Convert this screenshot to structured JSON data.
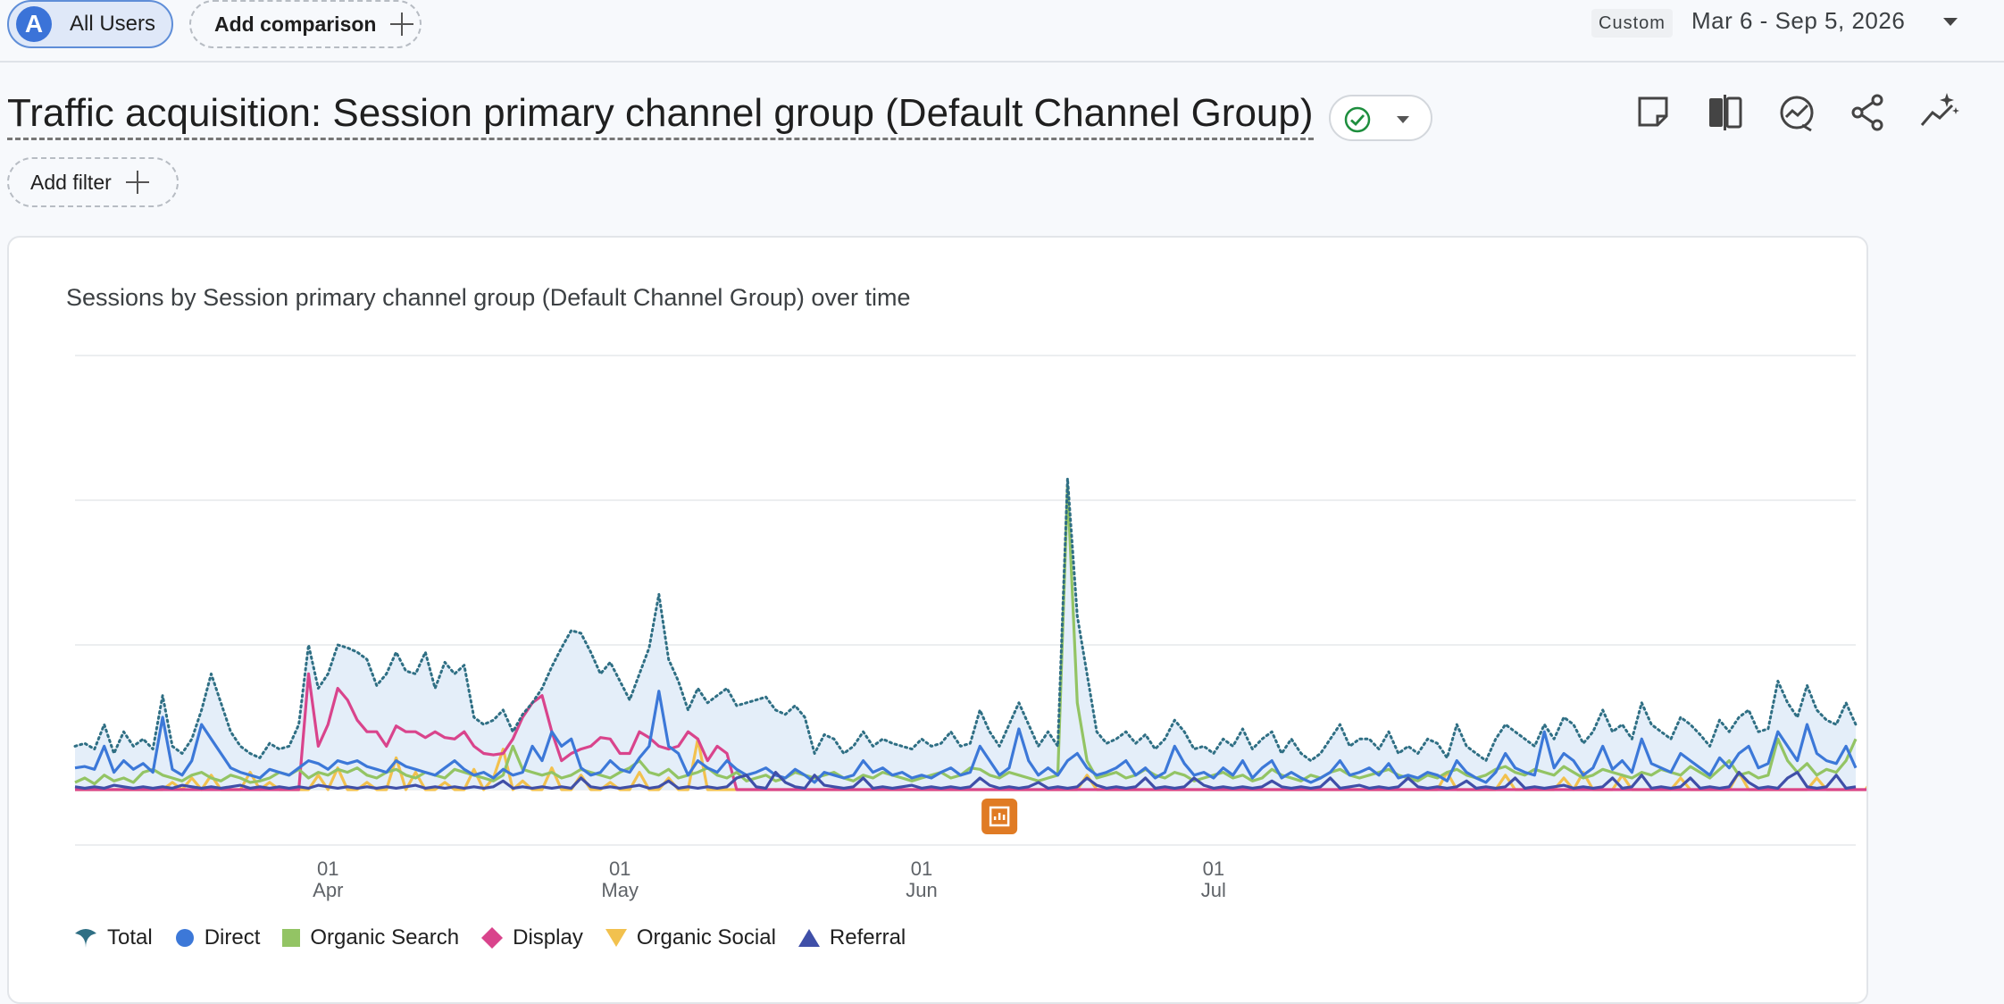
{
  "topbar": {
    "segment": {
      "initial": "A",
      "label": "All Users"
    },
    "add_comparison_label": "Add comparison",
    "date_preset": "Custom",
    "date_range": "Mar 6 - Sep 5, 2026"
  },
  "header": {
    "title": "Traffic acquisition: Session primary channel group (Default Channel Group)",
    "status_icon": "check-circle-icon",
    "tools": [
      "note-icon",
      "compare-columns-icon",
      "insights-chart-icon",
      "share-icon",
      "sparkle-trend-icon"
    ]
  },
  "filter": {
    "add_filter_label": "Add filter"
  },
  "chart_card": {
    "title": "Sessions by Session primary channel group (Default Channel Group) over time"
  },
  "colors": {
    "Total": "#2f6f84",
    "Total_fill": "#e4eef9",
    "Direct": "#3c78d8",
    "Organic Search": "#93c464",
    "Display": "#d9448c",
    "Organic Social": "#f2c14e",
    "Referral": "#3f4fa8",
    "annotation": "#e07b24"
  },
  "chart_data": {
    "type": "line",
    "x_start": "2026-03-06",
    "x_ticks": [
      {
        "date": "2026-04-01",
        "day": "01",
        "month": "Apr"
      },
      {
        "date": "2026-05-01",
        "day": "01",
        "month": "May"
      },
      {
        "date": "2026-06-01",
        "day": "01",
        "month": "Jun"
      },
      {
        "date": "2026-07-01",
        "day": "01",
        "month": "Jul"
      }
    ],
    "ylim": [
      0,
      300
    ],
    "grid": true,
    "legend_position": "bottom",
    "annotation_marker_date": "2026-06-09",
    "series": [
      {
        "name": "Total",
        "style": "dotted-area",
        "values": [
          30,
          32,
          28,
          45,
          25,
          40,
          30,
          35,
          28,
          65,
          30,
          25,
          35,
          55,
          80,
          60,
          40,
          30,
          25,
          22,
          32,
          28,
          30,
          45,
          100,
          70,
          80,
          100,
          98,
          95,
          90,
          72,
          80,
          95,
          82,
          80,
          95,
          70,
          88,
          80,
          86,
          50,
          45,
          48,
          55,
          40,
          52,
          60,
          70,
          85,
          98,
          110,
          108,
          95,
          80,
          88,
          75,
          62,
          80,
          98,
          135,
          90,
          75,
          55,
          70,
          60,
          65,
          70,
          58,
          60,
          62,
          64,
          55,
          52,
          58,
          50,
          25,
          38,
          35,
          25,
          30,
          40,
          30,
          35,
          32,
          30,
          28,
          35,
          30,
          32,
          40,
          30,
          32,
          55,
          40,
          30,
          45,
          60,
          45,
          30,
          40,
          30,
          215,
          120,
          80,
          40,
          32,
          35,
          40,
          32,
          38,
          28,
          35,
          48,
          40,
          28,
          30,
          25,
          35,
          30,
          42,
          28,
          35,
          40,
          25,
          35,
          25,
          20,
          25,
          35,
          45,
          30,
          35,
          35,
          28,
          40,
          25,
          30,
          25,
          35,
          32,
          22,
          45,
          30,
          25,
          20,
          35,
          45,
          40,
          35,
          30,
          45,
          35,
          50,
          45,
          32,
          40,
          55,
          40,
          45,
          35,
          60,
          45,
          40,
          35,
          50,
          45,
          38,
          30,
          48,
          40,
          50,
          55,
          40,
          42,
          75,
          60,
          50,
          72,
          55,
          48,
          45,
          60,
          45
        ],
        "note": ""
      },
      {
        "name": "Direct",
        "values": [
          15,
          16,
          14,
          30,
          12,
          20,
          14,
          18,
          12,
          50,
          14,
          10,
          20,
          45,
          35,
          25,
          15,
          12,
          10,
          8,
          14,
          12,
          10,
          15,
          20,
          18,
          14,
          20,
          18,
          20,
          16,
          14,
          12,
          20,
          16,
          14,
          12,
          10,
          15,
          20,
          14,
          10,
          12,
          8,
          14,
          10,
          12,
          30,
          20,
          40,
          30,
          35,
          15,
          10,
          12,
          20,
          14,
          12,
          22,
          30,
          68,
          30,
          25,
          10,
          20,
          15,
          12,
          20,
          14,
          10,
          12,
          15,
          10,
          8,
          14,
          10,
          5,
          12,
          10,
          8,
          10,
          20,
          12,
          15,
          10,
          12,
          8,
          10,
          8,
          12,
          15,
          10,
          12,
          30,
          20,
          10,
          15,
          42,
          20,
          10,
          15,
          10,
          20,
          25,
          15,
          10,
          12,
          15,
          20,
          10,
          15,
          8,
          12,
          30,
          18,
          10,
          12,
          8,
          15,
          10,
          20,
          8,
          15,
          20,
          8,
          12,
          8,
          5,
          8,
          12,
          20,
          10,
          12,
          15,
          10,
          18,
          8,
          10,
          8,
          12,
          10,
          6,
          20,
          12,
          8,
          5,
          12,
          25,
          15,
          12,
          10,
          40,
          15,
          25,
          20,
          10,
          15,
          30,
          14,
          20,
          12,
          35,
          18,
          15,
          12,
          25,
          20,
          15,
          10,
          22,
          15,
          25,
          30,
          15,
          18,
          40,
          30,
          20,
          45,
          25,
          20,
          18,
          30,
          15
        ],
        "note": ""
      },
      {
        "name": "Organic Search",
        "values": [
          5,
          8,
          4,
          10,
          6,
          8,
          5,
          12,
          14,
          10,
          8,
          6,
          10,
          12,
          8,
          6,
          10,
          8,
          5,
          6,
          8,
          12,
          10,
          14,
          8,
          12,
          10,
          14,
          12,
          15,
          10,
          8,
          12,
          14,
          10,
          8,
          12,
          10,
          8,
          14,
          12,
          10,
          8,
          6,
          10,
          30,
          14,
          12,
          10,
          12,
          8,
          10,
          14,
          12,
          10,
          8,
          12,
          15,
          20,
          12,
          10,
          14,
          8,
          10,
          12,
          15,
          10,
          8,
          12,
          6,
          8,
          10,
          6,
          8,
          12,
          10,
          8,
          10,
          12,
          8,
          6,
          10,
          8,
          12,
          10,
          8,
          6,
          8,
          10,
          12,
          8,
          10,
          15,
          14,
          10,
          8,
          12,
          10,
          8,
          6,
          8,
          10,
          210,
          60,
          20,
          8,
          10,
          12,
          8,
          10,
          14,
          10,
          8,
          12,
          10,
          6,
          8,
          10,
          12,
          8,
          10,
          6,
          8,
          14,
          10,
          8,
          6,
          10,
          8,
          12,
          14,
          10,
          8,
          10,
          12,
          14,
          10,
          8,
          6,
          10,
          8,
          12,
          14,
          10,
          8,
          10,
          14,
          16,
          12,
          10,
          14,
          12,
          10,
          16,
          12,
          8,
          10,
          14,
          12,
          10,
          8,
          12,
          10,
          14,
          12,
          10,
          16,
          12,
          8,
          14,
          20,
          10,
          12,
          8,
          10,
          35,
          20,
          12,
          18,
          10,
          14,
          12,
          20,
          35
        ],
        "note": ""
      },
      {
        "name": "Display",
        "values": [
          0,
          0,
          0,
          0,
          0,
          0,
          0,
          0,
          0,
          0,
          0,
          0,
          0,
          0,
          0,
          0,
          0,
          0,
          0,
          0,
          0,
          0,
          0,
          0,
          80,
          30,
          45,
          70,
          62,
          48,
          40,
          40,
          30,
          44,
          40,
          40,
          36,
          40,
          36,
          35,
          40,
          30,
          25,
          24,
          25,
          35,
          50,
          60,
          65,
          40,
          20,
          25,
          28,
          30,
          36,
          35,
          25,
          25,
          40,
          36,
          30,
          28,
          30,
          40,
          35,
          20,
          30,
          25,
          0,
          0,
          0,
          0,
          0,
          0,
          0,
          0,
          0,
          0,
          0,
          0,
          0,
          0,
          0,
          0,
          0,
          0,
          0,
          0,
          0,
          0,
          0,
          0,
          0,
          0,
          0,
          0,
          0,
          0,
          0,
          0,
          0,
          0,
          0,
          0,
          0,
          0,
          0,
          0,
          0,
          0,
          0,
          0,
          0,
          0,
          0,
          0,
          0,
          0,
          0,
          0,
          0,
          0,
          0,
          0,
          0,
          0,
          0,
          0,
          0,
          0,
          0,
          0,
          0,
          0,
          0,
          0,
          0,
          0,
          0,
          0,
          0,
          0,
          0,
          0,
          0,
          0,
          0,
          0,
          0,
          0,
          0,
          0,
          0,
          0,
          0,
          0,
          0,
          0,
          0,
          0,
          0,
          0,
          0,
          0,
          0,
          0,
          0,
          0,
          0,
          0,
          0,
          0,
          0,
          0,
          0,
          0,
          0,
          0,
          0,
          0,
          0,
          0,
          0,
          0,
          0,
          0,
          0,
          0
        ],
        "note": ""
      },
      {
        "name": "Organic Social",
        "values": [
          0,
          0,
          0,
          0,
          0,
          0,
          0,
          0,
          0,
          0,
          5,
          0,
          8,
          0,
          10,
          0,
          0,
          0,
          12,
          0,
          5,
          0,
          0,
          0,
          0,
          10,
          0,
          15,
          0,
          0,
          5,
          0,
          0,
          22,
          0,
          12,
          0,
          0,
          5,
          0,
          0,
          14,
          0,
          8,
          28,
          0,
          6,
          0,
          0,
          15,
          0,
          0,
          10,
          0,
          0,
          5,
          0,
          0,
          12,
          0,
          0,
          8,
          0,
          0,
          35,
          0,
          0,
          0,
          0,
          0,
          0,
          0,
          0,
          0,
          0,
          0,
          0,
          0,
          0,
          0,
          0,
          0,
          0,
          0,
          0,
          0,
          0,
          0,
          0,
          0,
          0,
          0,
          0,
          0,
          0,
          0,
          0,
          0,
          0,
          0,
          0,
          0,
          0,
          0,
          10,
          0,
          0,
          0,
          0,
          0,
          0,
          0,
          0,
          0,
          0,
          0,
          0,
          0,
          0,
          0,
          0,
          0,
          0,
          0,
          0,
          0,
          0,
          0,
          0,
          0,
          0,
          0,
          0,
          0,
          0,
          0,
          0,
          0,
          0,
          0,
          0,
          12,
          0,
          0,
          0,
          0,
          0,
          10,
          0,
          0,
          0,
          0,
          0,
          8,
          0,
          12,
          0,
          0,
          0,
          10,
          0,
          0,
          0,
          0,
          0,
          8,
          0,
          0,
          0,
          0,
          0,
          12,
          0,
          0,
          0,
          0,
          0,
          0,
          0,
          8,
          0,
          0,
          0,
          0,
          0,
          10,
          0,
          0
        ],
        "note": ""
      },
      {
        "name": "Referral",
        "values": [
          2,
          1,
          2,
          1,
          3,
          2,
          1,
          2,
          1,
          2,
          1,
          3,
          2,
          1,
          2,
          1,
          2,
          3,
          1,
          2,
          1,
          2,
          1,
          2,
          1,
          3,
          2,
          1,
          2,
          1,
          2,
          1,
          2,
          1,
          2,
          3,
          1,
          2,
          1,
          2,
          1,
          2,
          1,
          2,
          6,
          1,
          2,
          1,
          2,
          1,
          2,
          1,
          8,
          2,
          1,
          2,
          1,
          2,
          3,
          1,
          2,
          6,
          1,
          2,
          1,
          2,
          1,
          2,
          8,
          10,
          2,
          1,
          12,
          5,
          2,
          1,
          10,
          3,
          2,
          1,
          2,
          8,
          1,
          2,
          1,
          2,
          3,
          1,
          2,
          1,
          2,
          1,
          2,
          8,
          3,
          1,
          2,
          1,
          2,
          5,
          1,
          2,
          1,
          2,
          8,
          3,
          1,
          2,
          1,
          2,
          8,
          1,
          2,
          1,
          2,
          8,
          3,
          1,
          2,
          1,
          2,
          1,
          2,
          6,
          2,
          1,
          2,
          1,
          2,
          8,
          1,
          2,
          3,
          1,
          2,
          1,
          2,
          8,
          2,
          1,
          2,
          1,
          2,
          6,
          1,
          2,
          1,
          2,
          8,
          1,
          2,
          1,
          2,
          3,
          1,
          2,
          1,
          2,
          8,
          1,
          2,
          10,
          1,
          2,
          1,
          2,
          8,
          1,
          2,
          1,
          2,
          12,
          5,
          1,
          2,
          1,
          8,
          12,
          2,
          1,
          2,
          10,
          1,
          2
        ],
        "note": ""
      }
    ]
  }
}
